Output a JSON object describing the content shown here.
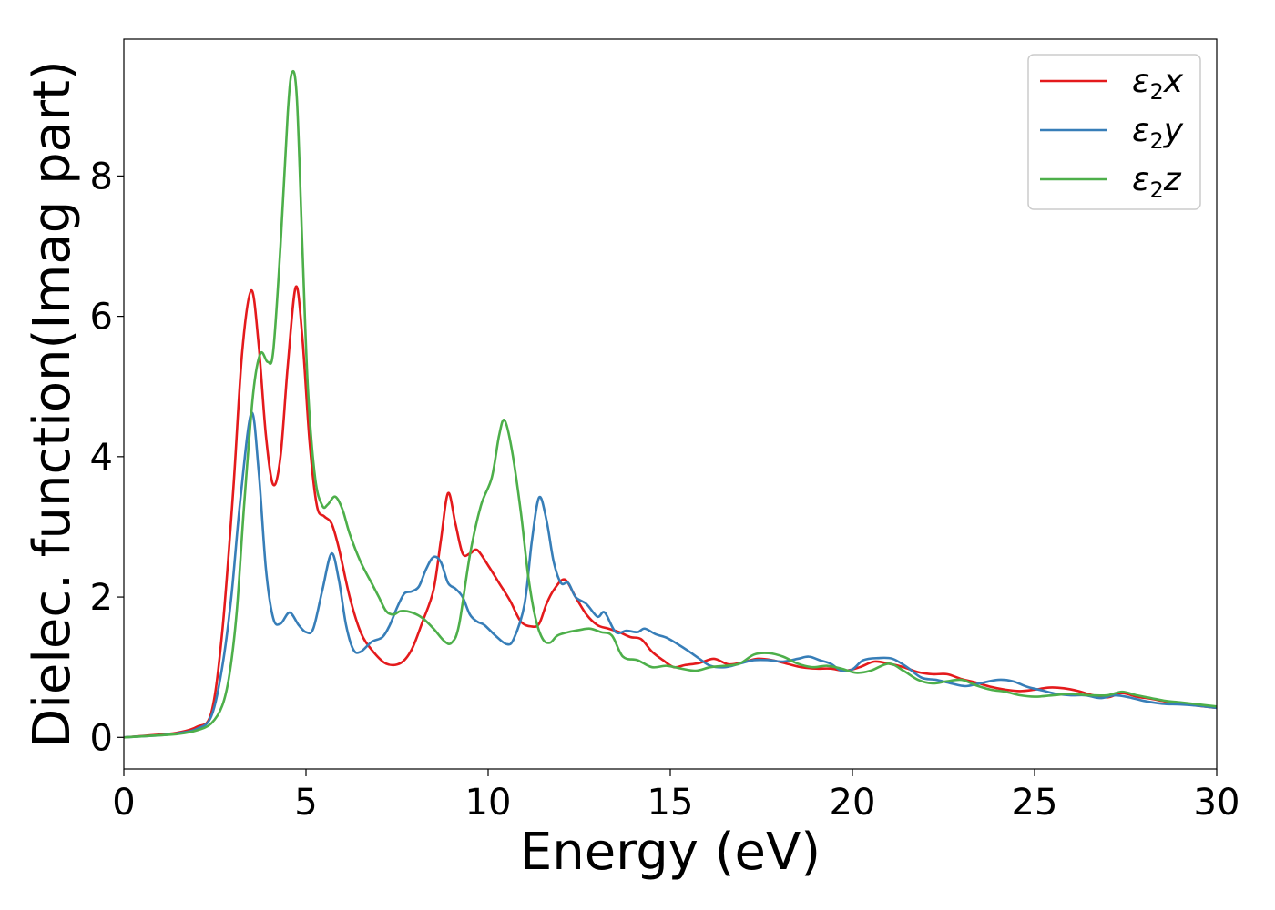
{
  "chart_data": {
    "type": "line",
    "title": "",
    "xlabel": "Energy (eV)",
    "ylabel": "Dielec. function(Imag part)",
    "xlim": [
      0,
      30
    ],
    "ylim": [
      -0.45,
      9.95
    ],
    "xticks": [
      0,
      5,
      10,
      15,
      20,
      25,
      30
    ],
    "yticks": [
      0,
      2,
      4,
      6,
      8
    ],
    "grid": false,
    "legend_position": "top-right",
    "series": [
      {
        "name": "ε2x",
        "legend": {
          "base": "ε",
          "sub": "2",
          "tail": "x"
        },
        "color": "#e41a1c",
        "points": [
          [
            0,
            0
          ],
          [
            1,
            0.04
          ],
          [
            1.5,
            0.07
          ],
          [
            2,
            0.15
          ],
          [
            2.4,
            0.35
          ],
          [
            2.7,
            1.5
          ],
          [
            3.0,
            3.5
          ],
          [
            3.25,
            5.5
          ],
          [
            3.5,
            6.37
          ],
          [
            3.7,
            5.6
          ],
          [
            3.9,
            4.3
          ],
          [
            4.1,
            3.6
          ],
          [
            4.3,
            4.0
          ],
          [
            4.5,
            5.3
          ],
          [
            4.72,
            6.42
          ],
          [
            4.9,
            5.7
          ],
          [
            5.1,
            4.2
          ],
          [
            5.3,
            3.3
          ],
          [
            5.5,
            3.15
          ],
          [
            5.7,
            3.05
          ],
          [
            5.9,
            2.7
          ],
          [
            6.2,
            2.0
          ],
          [
            6.5,
            1.5
          ],
          [
            6.8,
            1.25
          ],
          [
            7.2,
            1.05
          ],
          [
            7.6,
            1.06
          ],
          [
            7.9,
            1.25
          ],
          [
            8.2,
            1.65
          ],
          [
            8.5,
            2.1
          ],
          [
            8.7,
            2.8
          ],
          [
            8.9,
            3.48
          ],
          [
            9.1,
            3.05
          ],
          [
            9.3,
            2.62
          ],
          [
            9.5,
            2.62
          ],
          [
            9.7,
            2.67
          ],
          [
            10.0,
            2.45
          ],
          [
            10.3,
            2.2
          ],
          [
            10.6,
            1.95
          ],
          [
            10.9,
            1.65
          ],
          [
            11.2,
            1.58
          ],
          [
            11.4,
            1.62
          ],
          [
            11.6,
            1.9
          ],
          [
            11.8,
            2.1
          ],
          [
            12.1,
            2.25
          ],
          [
            12.4,
            2.0
          ],
          [
            12.7,
            1.75
          ],
          [
            13.0,
            1.6
          ],
          [
            13.3,
            1.55
          ],
          [
            13.6,
            1.5
          ],
          [
            13.9,
            1.43
          ],
          [
            14.2,
            1.4
          ],
          [
            14.5,
            1.22
          ],
          [
            14.8,
            1.1
          ],
          [
            15.1,
            1.0
          ],
          [
            15.4,
            1.03
          ],
          [
            15.8,
            1.06
          ],
          [
            16.2,
            1.12
          ],
          [
            16.6,
            1.04
          ],
          [
            17.0,
            1.07
          ],
          [
            17.4,
            1.12
          ],
          [
            17.8,
            1.1
          ],
          [
            18.2,
            1.05
          ],
          [
            18.6,
            1.0
          ],
          [
            19.0,
            0.98
          ],
          [
            19.4,
            0.98
          ],
          [
            19.8,
            0.95
          ],
          [
            20.2,
            1.0
          ],
          [
            20.6,
            1.08
          ],
          [
            21.0,
            1.05
          ],
          [
            21.4,
            1.0
          ],
          [
            21.8,
            0.93
          ],
          [
            22.2,
            0.9
          ],
          [
            22.6,
            0.9
          ],
          [
            23.0,
            0.83
          ],
          [
            23.4,
            0.78
          ],
          [
            23.8,
            0.72
          ],
          [
            24.2,
            0.68
          ],
          [
            24.6,
            0.66
          ],
          [
            25.0,
            0.68
          ],
          [
            25.4,
            0.71
          ],
          [
            25.8,
            0.7
          ],
          [
            26.2,
            0.66
          ],
          [
            26.6,
            0.6
          ],
          [
            27.0,
            0.57
          ],
          [
            27.4,
            0.63
          ],
          [
            27.8,
            0.58
          ],
          [
            28.2,
            0.55
          ],
          [
            28.6,
            0.51
          ],
          [
            29.0,
            0.49
          ],
          [
            29.5,
            0.45
          ],
          [
            30,
            0.42
          ]
        ]
      },
      {
        "name": "ε2y",
        "legend": {
          "base": "ε",
          "sub": "2",
          "tail": "y"
        },
        "color": "#377eb8",
        "points": [
          [
            0,
            0
          ],
          [
            1,
            0.03
          ],
          [
            1.5,
            0.06
          ],
          [
            2,
            0.12
          ],
          [
            2.4,
            0.3
          ],
          [
            2.7,
            1.0
          ],
          [
            2.95,
            2.0
          ],
          [
            3.2,
            3.4
          ],
          [
            3.5,
            4.62
          ],
          [
            3.7,
            3.8
          ],
          [
            3.9,
            2.4
          ],
          [
            4.1,
            1.7
          ],
          [
            4.3,
            1.62
          ],
          [
            4.55,
            1.78
          ],
          [
            4.8,
            1.6
          ],
          [
            5.0,
            1.5
          ],
          [
            5.2,
            1.55
          ],
          [
            5.45,
            2.1
          ],
          [
            5.7,
            2.62
          ],
          [
            5.9,
            2.25
          ],
          [
            6.1,
            1.6
          ],
          [
            6.3,
            1.25
          ],
          [
            6.5,
            1.22
          ],
          [
            6.8,
            1.36
          ],
          [
            7.1,
            1.43
          ],
          [
            7.3,
            1.6
          ],
          [
            7.5,
            1.85
          ],
          [
            7.7,
            2.05
          ],
          [
            7.9,
            2.08
          ],
          [
            8.1,
            2.15
          ],
          [
            8.3,
            2.4
          ],
          [
            8.5,
            2.57
          ],
          [
            8.7,
            2.5
          ],
          [
            8.9,
            2.2
          ],
          [
            9.1,
            2.12
          ],
          [
            9.3,
            2.0
          ],
          [
            9.5,
            1.75
          ],
          [
            9.7,
            1.65
          ],
          [
            9.9,
            1.6
          ],
          [
            10.2,
            1.45
          ],
          [
            10.5,
            1.33
          ],
          [
            10.7,
            1.4
          ],
          [
            11.0,
            1.9
          ],
          [
            11.2,
            2.8
          ],
          [
            11.4,
            3.42
          ],
          [
            11.6,
            3.1
          ],
          [
            11.8,
            2.5
          ],
          [
            12.0,
            2.2
          ],
          [
            12.2,
            2.2
          ],
          [
            12.4,
            2.0
          ],
          [
            12.7,
            1.9
          ],
          [
            13.0,
            1.72
          ],
          [
            13.2,
            1.78
          ],
          [
            13.5,
            1.5
          ],
          [
            13.8,
            1.52
          ],
          [
            14.1,
            1.5
          ],
          [
            14.3,
            1.55
          ],
          [
            14.6,
            1.47
          ],
          [
            14.9,
            1.42
          ],
          [
            15.2,
            1.33
          ],
          [
            15.5,
            1.23
          ],
          [
            15.8,
            1.12
          ],
          [
            16.1,
            1.02
          ],
          [
            16.5,
            1.0
          ],
          [
            16.9,
            1.05
          ],
          [
            17.3,
            1.1
          ],
          [
            17.7,
            1.1
          ],
          [
            18.1,
            1.08
          ],
          [
            18.5,
            1.12
          ],
          [
            18.8,
            1.15
          ],
          [
            19.1,
            1.1
          ],
          [
            19.4,
            1.05
          ],
          [
            19.7,
            0.95
          ],
          [
            20.0,
            0.97
          ],
          [
            20.3,
            1.1
          ],
          [
            20.7,
            1.13
          ],
          [
            21.1,
            1.12
          ],
          [
            21.5,
            1.0
          ],
          [
            21.9,
            0.85
          ],
          [
            22.3,
            0.82
          ],
          [
            22.7,
            0.77
          ],
          [
            23.1,
            0.73
          ],
          [
            23.5,
            0.77
          ],
          [
            24.0,
            0.82
          ],
          [
            24.4,
            0.8
          ],
          [
            24.8,
            0.72
          ],
          [
            25.2,
            0.67
          ],
          [
            25.6,
            0.62
          ],
          [
            26.0,
            0.6
          ],
          [
            26.4,
            0.6
          ],
          [
            26.8,
            0.56
          ],
          [
            27.2,
            0.6
          ],
          [
            27.6,
            0.57
          ],
          [
            28.0,
            0.52
          ],
          [
            28.5,
            0.48
          ],
          [
            29.0,
            0.47
          ],
          [
            29.5,
            0.45
          ],
          [
            30,
            0.42
          ]
        ]
      },
      {
        "name": "ε2z",
        "legend": {
          "base": "ε",
          "sub": "2",
          "tail": "z"
        },
        "color": "#4daf4a",
        "points": [
          [
            0,
            0
          ],
          [
            1,
            0.03
          ],
          [
            1.5,
            0.05
          ],
          [
            2,
            0.1
          ],
          [
            2.4,
            0.2
          ],
          [
            2.7,
            0.45
          ],
          [
            2.9,
            0.9
          ],
          [
            3.1,
            1.8
          ],
          [
            3.3,
            3.3
          ],
          [
            3.55,
            4.9
          ],
          [
            3.75,
            5.47
          ],
          [
            3.95,
            5.35
          ],
          [
            4.1,
            5.5
          ],
          [
            4.3,
            7.0
          ],
          [
            4.5,
            8.9
          ],
          [
            4.62,
            9.48
          ],
          [
            4.75,
            9.1
          ],
          [
            4.9,
            7.0
          ],
          [
            5.05,
            5.0
          ],
          [
            5.25,
            3.7
          ],
          [
            5.45,
            3.3
          ],
          [
            5.6,
            3.32
          ],
          [
            5.8,
            3.43
          ],
          [
            6.0,
            3.25
          ],
          [
            6.2,
            2.9
          ],
          [
            6.5,
            2.5
          ],
          [
            6.8,
            2.2
          ],
          [
            7.0,
            2.0
          ],
          [
            7.2,
            1.8
          ],
          [
            7.4,
            1.75
          ],
          [
            7.6,
            1.8
          ],
          [
            7.9,
            1.78
          ],
          [
            8.2,
            1.7
          ],
          [
            8.5,
            1.55
          ],
          [
            8.8,
            1.37
          ],
          [
            9.0,
            1.35
          ],
          [
            9.2,
            1.6
          ],
          [
            9.5,
            2.6
          ],
          [
            9.8,
            3.3
          ],
          [
            10.1,
            3.7
          ],
          [
            10.3,
            4.3
          ],
          [
            10.45,
            4.52
          ],
          [
            10.65,
            4.1
          ],
          [
            10.9,
            3.2
          ],
          [
            11.1,
            2.3
          ],
          [
            11.3,
            1.7
          ],
          [
            11.5,
            1.4
          ],
          [
            11.7,
            1.35
          ],
          [
            11.9,
            1.45
          ],
          [
            12.2,
            1.5
          ],
          [
            12.5,
            1.53
          ],
          [
            12.8,
            1.55
          ],
          [
            13.1,
            1.5
          ],
          [
            13.4,
            1.45
          ],
          [
            13.7,
            1.15
          ],
          [
            14.1,
            1.1
          ],
          [
            14.5,
            1.0
          ],
          [
            14.9,
            1.02
          ],
          [
            15.3,
            0.98
          ],
          [
            15.7,
            0.95
          ],
          [
            16.1,
            1.0
          ],
          [
            16.5,
            1.02
          ],
          [
            16.9,
            1.05
          ],
          [
            17.3,
            1.18
          ],
          [
            17.7,
            1.2
          ],
          [
            18.1,
            1.15
          ],
          [
            18.5,
            1.05
          ],
          [
            18.9,
            1.0
          ],
          [
            19.3,
            1.02
          ],
          [
            19.7,
            0.98
          ],
          [
            20.1,
            0.92
          ],
          [
            20.5,
            0.95
          ],
          [
            21.0,
            1.05
          ],
          [
            21.4,
            0.95
          ],
          [
            21.8,
            0.82
          ],
          [
            22.2,
            0.77
          ],
          [
            22.6,
            0.8
          ],
          [
            23.0,
            0.82
          ],
          [
            23.4,
            0.74
          ],
          [
            23.8,
            0.68
          ],
          [
            24.2,
            0.65
          ],
          [
            24.6,
            0.6
          ],
          [
            25.0,
            0.58
          ],
          [
            25.5,
            0.6
          ],
          [
            26.0,
            0.62
          ],
          [
            26.5,
            0.6
          ],
          [
            27.0,
            0.6
          ],
          [
            27.4,
            0.65
          ],
          [
            27.8,
            0.6
          ],
          [
            28.2,
            0.56
          ],
          [
            28.6,
            0.52
          ],
          [
            29.0,
            0.5
          ],
          [
            29.5,
            0.47
          ],
          [
            30,
            0.44
          ]
        ]
      }
    ]
  }
}
